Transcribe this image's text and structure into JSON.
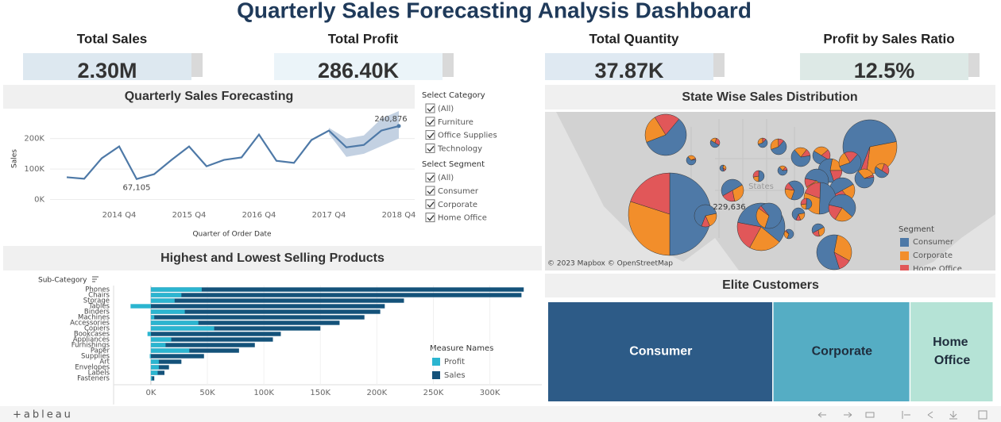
{
  "header": {
    "title": "Quarterly Sales Forecasting Analysis Dashboard"
  },
  "kpis": [
    {
      "label": "Total Sales",
      "value": "2.30M"
    },
    {
      "label": "Total Profit",
      "value": "286.40K"
    },
    {
      "label": "Total Quantity",
      "value": "37.87K"
    },
    {
      "label": "Profit by Sales Ratio",
      "value": "12.5%"
    }
  ],
  "filters": [
    {
      "title": "Select Category",
      "options": [
        "(All)",
        "Furniture",
        "Office Supplies",
        "Technology"
      ]
    },
    {
      "title": "Select Segment",
      "options": [
        "(All)",
        "Consumer",
        "Corporate",
        "Home Office"
      ]
    }
  ],
  "map": {
    "title": "State Wise Sales Distribution",
    "labels": [
      "229,636",
      "States"
    ],
    "attribution": "© 2023 Mapbox © OpenStreetMap",
    "legend_title": "Segment",
    "segments": [
      {
        "name": "Consumer",
        "color": "#4e79a7"
      },
      {
        "name": "Corporate",
        "color": "#f28e2b"
      },
      {
        "name": "Home Office",
        "color": "#e15759"
      }
    ]
  },
  "chart_data": [
    {
      "type": "line",
      "title": "Quarterly Sales Forecasting",
      "x_label": "Quarter of Order Date",
      "y_label": "Sales",
      "categories": [
        null,
        null,
        null,
        "2014 Q4",
        null,
        null,
        null,
        "2015 Q4",
        null,
        null,
        null,
        "2016 Q4",
        null,
        null,
        null,
        "2017 Q4",
        null,
        null,
        null,
        "2018 Q4"
      ],
      "values": [
        73000,
        68000,
        135000,
        174000,
        67105,
        83000,
        130000,
        174000,
        109000,
        130000,
        138000,
        213000,
        127000,
        120000,
        195000,
        226000,
        171000,
        179000,
        226000,
        240876
      ],
      "value_labels": [
        null,
        null,
        null,
        null,
        "67,105",
        null,
        null,
        null,
        null,
        null,
        null,
        null,
        null,
        null,
        null,
        null,
        null,
        null,
        null,
        "240,876"
      ],
      "band_lower": [
        null,
        null,
        null,
        null,
        null,
        null,
        null,
        null,
        null,
        null,
        null,
        null,
        null,
        null,
        null,
        215000,
        140000,
        150000,
        175000,
        200000
      ],
      "band_upper": [
        null,
        null,
        null,
        null,
        null,
        null,
        null,
        null,
        null,
        null,
        null,
        null,
        null,
        null,
        null,
        235000,
        200000,
        210000,
        265000,
        290000
      ],
      "color": "#4e79a7",
      "band_color": "#c3d1e2",
      "ylim": [
        -35000,
        290000
      ],
      "yticks": [
        {
          "value": 0,
          "label": "0K"
        },
        {
          "value": 100000,
          "label": "100K"
        },
        {
          "value": 200000,
          "label": "200K"
        }
      ],
      "grid": true
    },
    {
      "type": "hbar",
      "title": "Highest and Lowest Selling Products",
      "y_label": "Sub-Category",
      "legend_title": "Measure Names",
      "categories": [
        "Phones",
        "Chairs",
        "Storage",
        "Tables",
        "Binders",
        "Machines",
        "Accessories",
        "Copiers",
        "Bookcases",
        "Appliances",
        "Furnishings",
        "Paper",
        "Supplies",
        "Art",
        "Envelopes",
        "Labels",
        "Fasteners"
      ],
      "series": [
        {
          "name": "Sales",
          "color": "#14527a",
          "values": [
            330000,
            328000,
            224000,
            207000,
            203000,
            189000,
            167000,
            150000,
            115000,
            108000,
            92000,
            78000,
            47000,
            27000,
            16000,
            12000,
            3000
          ]
        },
        {
          "name": "Profit",
          "color": "#2bb5d0",
          "values": [
            45000,
            27000,
            21000,
            -18000,
            30000,
            3000,
            42000,
            56000,
            -3000,
            18000,
            13000,
            34000,
            -1000,
            7000,
            7000,
            6000,
            1000
          ]
        }
      ],
      "xlim": [
        -33000,
        346000
      ],
      "xticks": [
        {
          "value": 0,
          "label": "0K"
        },
        {
          "value": 50000,
          "label": "50K"
        },
        {
          "value": 100000,
          "label": "100K"
        },
        {
          "value": 150000,
          "label": "150K"
        },
        {
          "value": 200000,
          "label": "200K"
        },
        {
          "value": 250000,
          "label": "250K"
        },
        {
          "value": 300000,
          "label": "300K"
        }
      ],
      "grid": true
    },
    {
      "type": "treemap",
      "title": "Elite Customers",
      "categories": [
        "Consumer",
        "Corporate",
        "Home Office"
      ],
      "values": [
        1160000,
        706000,
        429000
      ],
      "colors": [
        "#2d5b87",
        "#55adc4",
        "#b5e3d6"
      ],
      "text_colors": [
        "#ffffff",
        "#1f2d3d",
        "#1f2d3d"
      ]
    }
  ],
  "footer": {
    "brand": "+ableau"
  }
}
